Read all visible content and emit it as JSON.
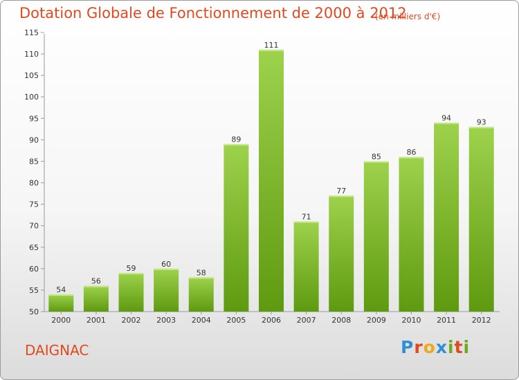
{
  "title": "Dotation Globale de Fonctionnement de 2000 à 2012",
  "unit_note": "(en milliers d'€)",
  "commune": "DAIGNAC",
  "logo": {
    "text": "Proxiti",
    "letters": [
      "P",
      "r",
      "o",
      "x",
      "i",
      "t",
      "i"
    ],
    "colors": [
      "#2e8fd6",
      "#e0491f",
      "#f0a81c",
      "#2e8fd6",
      "#6aaa1e",
      "#e0491f",
      "#6aaa1e"
    ]
  },
  "colors": {
    "bar_light": "#9ed24c",
    "bar_dark": "#5e9a10",
    "accent": "#e0491f"
  },
  "chart_data": {
    "type": "bar",
    "title": "Dotation Globale de Fonctionnement de 2000 à 2012",
    "subtitle": "(en milliers d'€)",
    "categories": [
      "2000",
      "2001",
      "2002",
      "2003",
      "2004",
      "2005",
      "2006",
      "2007",
      "2008",
      "2009",
      "2010",
      "2011",
      "2012"
    ],
    "values": [
      54,
      56,
      59,
      60,
      58,
      89,
      111,
      71,
      77,
      85,
      86,
      94,
      93
    ],
    "ylim": [
      50,
      115
    ],
    "yticks": [
      50,
      55,
      60,
      65,
      70,
      75,
      80,
      85,
      90,
      95,
      100,
      105,
      110,
      115
    ],
    "grid": false,
    "legend": "none"
  }
}
